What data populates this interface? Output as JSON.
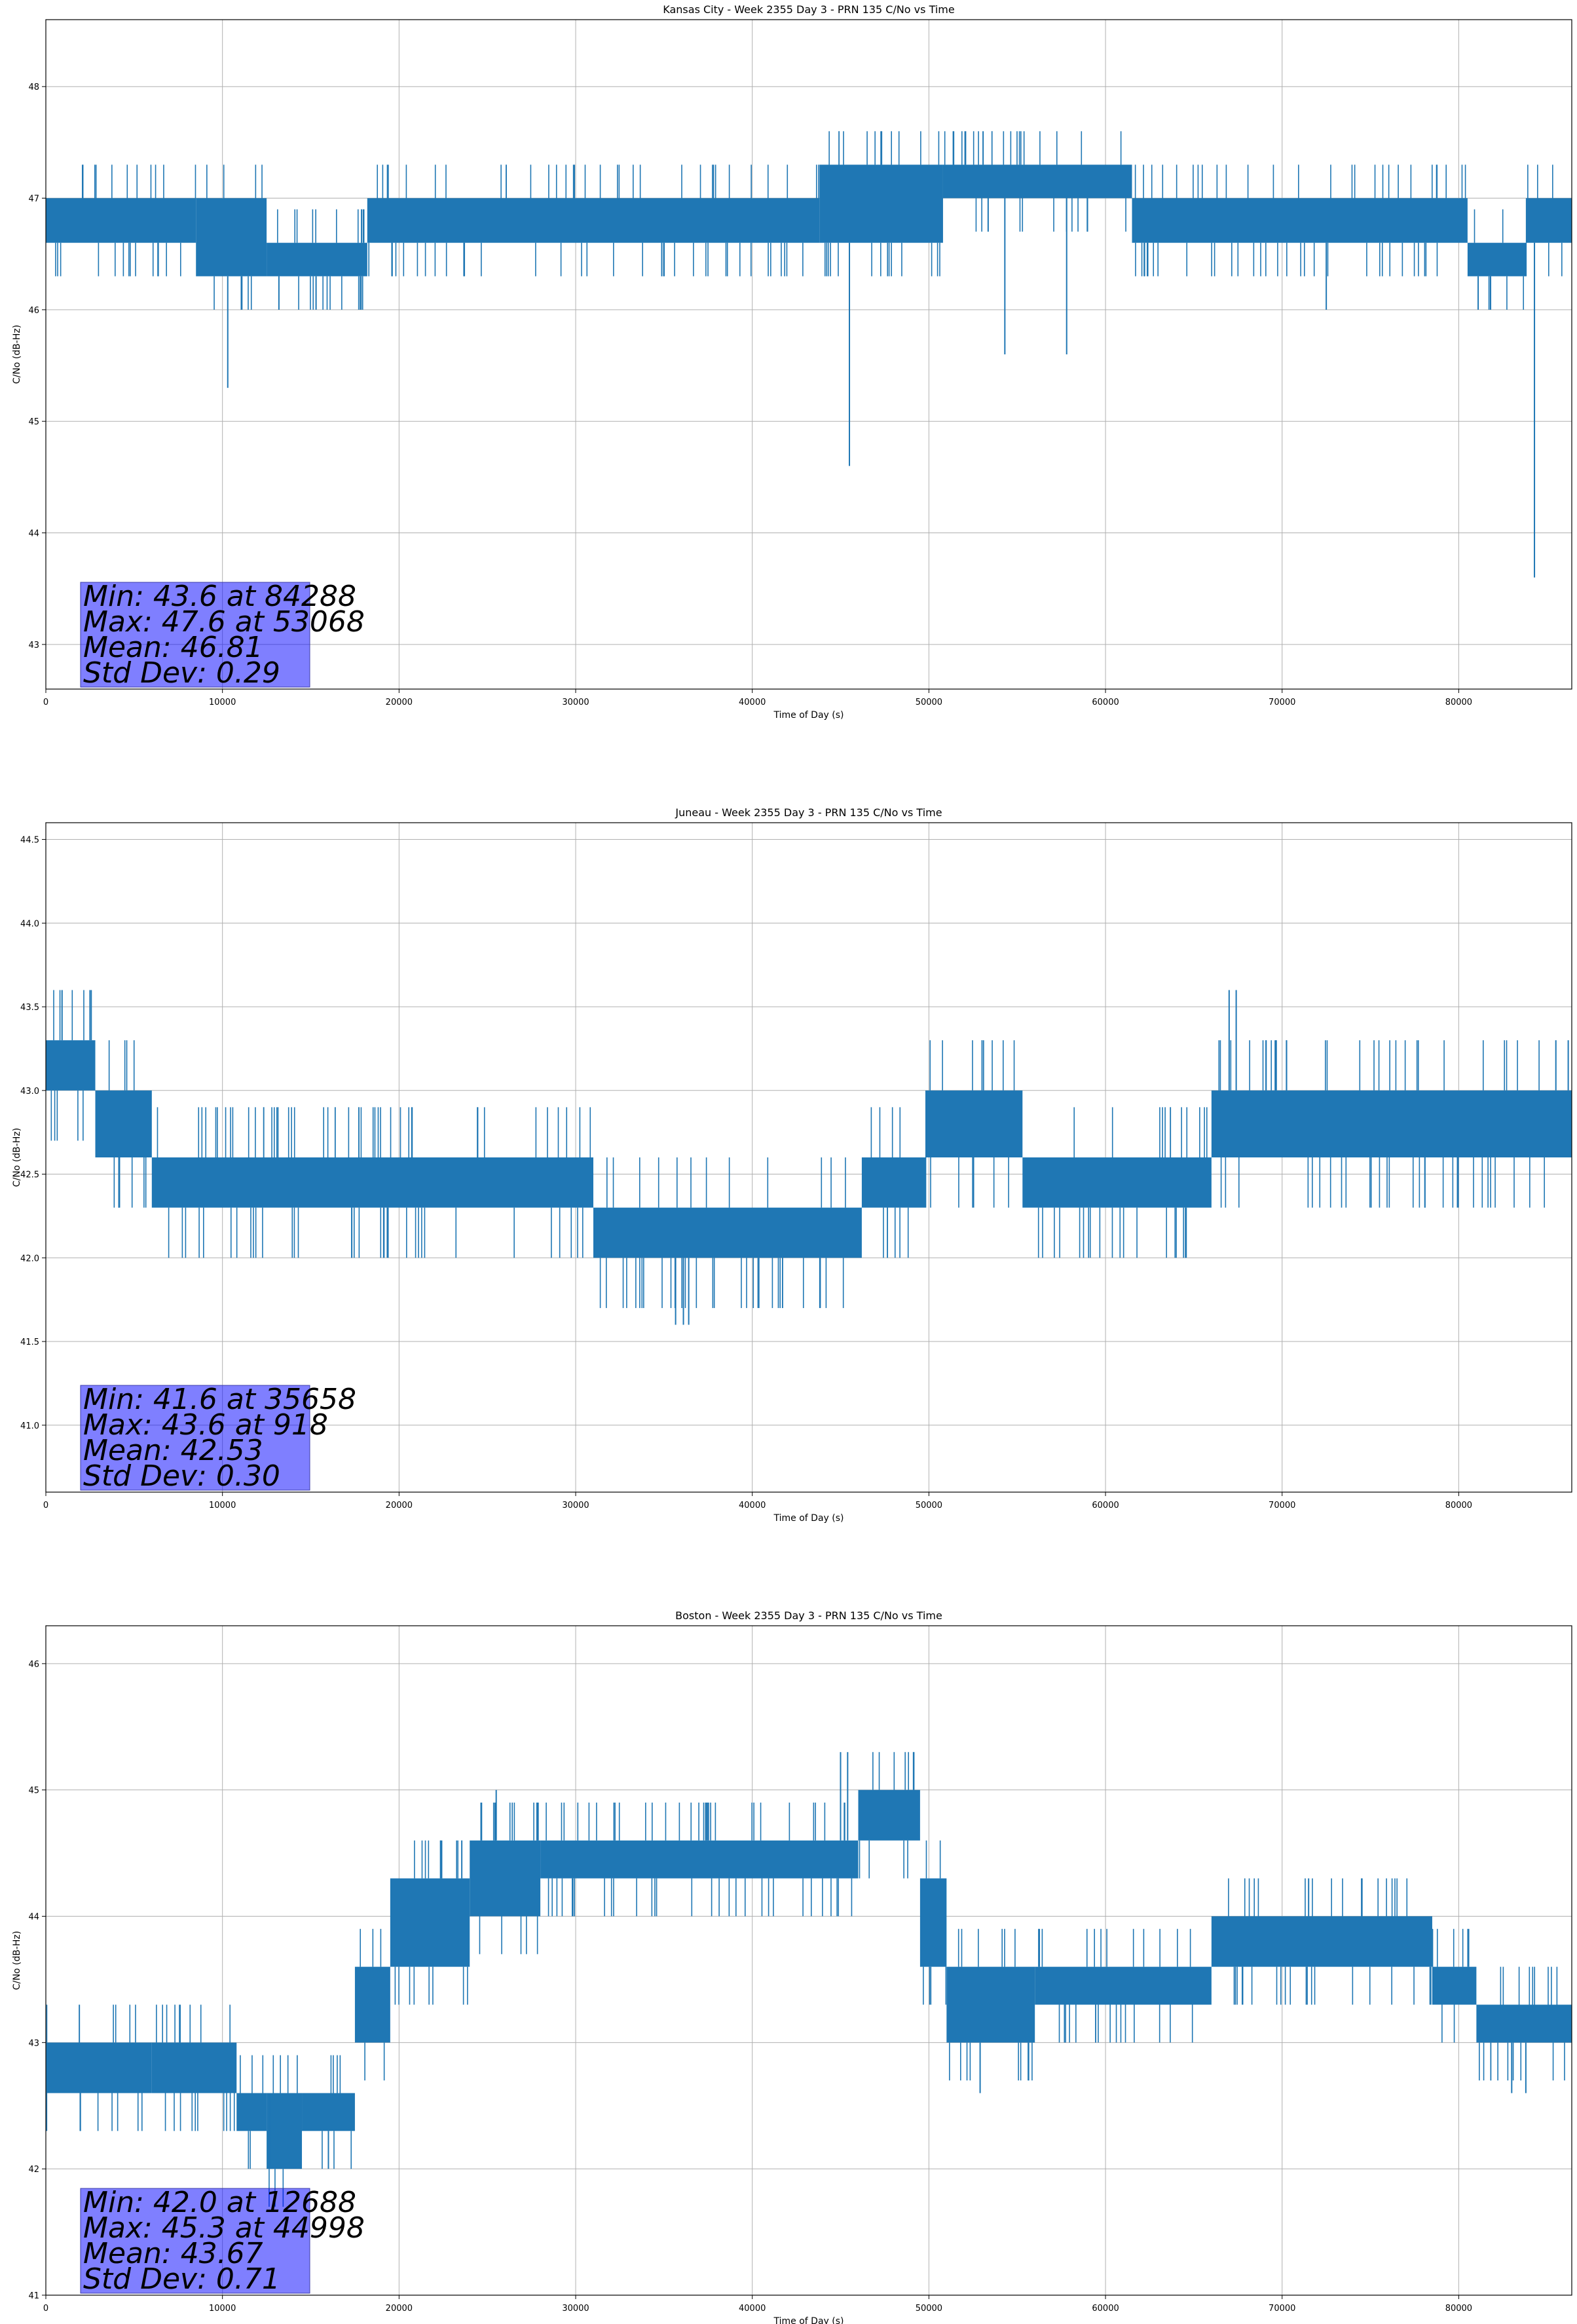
{
  "chart_data": [
    {
      "type": "line",
      "title": "Kansas City - Week 2355 Day 3 - PRN 135 C/No vs Time",
      "xlabel": "Time of Day (s)",
      "ylabel": "C/No (dB-Hz)",
      "xlim": [
        0,
        86400
      ],
      "ylim": [
        42.6,
        48.6
      ],
      "xticks": [
        0,
        10000,
        20000,
        30000,
        40000,
        50000,
        60000,
        70000,
        80000
      ],
      "yticks": [
        43,
        44,
        45,
        46,
        47,
        48
      ],
      "ytick_labels": [
        "43",
        "44",
        "45",
        "46",
        "47",
        "48"
      ],
      "grid": true,
      "line_color": "#1f77b4",
      "band_segments": [
        {
          "x_start": 0,
          "x_end": 8500,
          "low": 46.6,
          "high": 47.0
        },
        {
          "x_start": 8500,
          "x_end": 12500,
          "low": 46.3,
          "high": 47.0
        },
        {
          "x_start": 12500,
          "x_end": 18200,
          "low": 46.3,
          "high": 46.6
        },
        {
          "x_start": 18200,
          "x_end": 43800,
          "low": 46.6,
          "high": 47.0
        },
        {
          "x_start": 43800,
          "x_end": 50800,
          "low": 46.6,
          "high": 47.3
        },
        {
          "x_start": 50800,
          "x_end": 61500,
          "low": 47.0,
          "high": 47.3
        },
        {
          "x_start": 61500,
          "x_end": 80500,
          "low": 46.6,
          "high": 47.0
        },
        {
          "x_start": 80500,
          "x_end": 83800,
          "low": 46.3,
          "high": 46.6
        },
        {
          "x_start": 83800,
          "x_end": 86400,
          "low": 46.6,
          "high": 47.0
        }
      ],
      "noise_step": 0.3,
      "spikes": [
        {
          "x": 10300,
          "y": 45.3
        },
        {
          "x": 15300,
          "y": 46.0
        },
        {
          "x": 45500,
          "y": 44.6
        },
        {
          "x": 54300,
          "y": 45.6
        },
        {
          "x": 57800,
          "y": 45.6
        },
        {
          "x": 72500,
          "y": 46.0
        },
        {
          "x": 81100,
          "y": 46.0
        },
        {
          "x": 84288,
          "y": 43.6
        },
        {
          "x": 53068,
          "y": 47.6
        }
      ],
      "stats": {
        "min_line": "Min: 43.6 at 84288",
        "max_line": "Max: 47.6 at 53068",
        "mean_line": "Mean: 46.81",
        "std_line": "Std Dev: 0.29"
      }
    },
    {
      "type": "line",
      "title": "Juneau - Week 2355 Day 3 - PRN 135 C/No vs Time",
      "xlabel": "Time of Day (s)",
      "ylabel": "C/No (dB-Hz)",
      "xlim": [
        0,
        86400
      ],
      "ylim": [
        40.6,
        44.6
      ],
      "xticks": [
        0,
        10000,
        20000,
        30000,
        40000,
        50000,
        60000,
        70000,
        80000
      ],
      "yticks": [
        41.0,
        41.5,
        42.0,
        42.5,
        43.0,
        43.5,
        44.0,
        44.5
      ],
      "ytick_labels": [
        "41.0",
        "41.5",
        "42.0",
        "42.5",
        "43.0",
        "43.5",
        "44.0",
        "44.5"
      ],
      "grid": true,
      "line_color": "#1f77b4",
      "band_segments": [
        {
          "x_start": 0,
          "x_end": 2800,
          "low": 43.0,
          "high": 43.3
        },
        {
          "x_start": 2800,
          "x_end": 6000,
          "low": 42.6,
          "high": 43.0
        },
        {
          "x_start": 6000,
          "x_end": 31000,
          "low": 42.3,
          "high": 42.6
        },
        {
          "x_start": 31000,
          "x_end": 46200,
          "low": 42.0,
          "high": 42.3
        },
        {
          "x_start": 46200,
          "x_end": 49800,
          "low": 42.3,
          "high": 42.6
        },
        {
          "x_start": 49800,
          "x_end": 55300,
          "low": 42.6,
          "high": 43.0
        },
        {
          "x_start": 55300,
          "x_end": 66000,
          "low": 42.3,
          "high": 42.6
        },
        {
          "x_start": 66000,
          "x_end": 86400,
          "low": 42.6,
          "high": 43.0
        }
      ],
      "noise_step": 0.3,
      "spikes": [
        {
          "x": 918,
          "y": 43.6
        },
        {
          "x": 2500,
          "y": 43.6
        },
        {
          "x": 35658,
          "y": 41.6
        },
        {
          "x": 36100,
          "y": 41.6
        },
        {
          "x": 36400,
          "y": 41.6
        },
        {
          "x": 67000,
          "y": 43.6
        },
        {
          "x": 67400,
          "y": 43.6
        },
        {
          "x": 85500,
          "y": 43.3
        },
        {
          "x": 86200,
          "y": 43.3
        }
      ],
      "stats": {
        "min_line": "Min: 41.6 at 35658",
        "max_line": "Max: 43.6 at 918",
        "mean_line": "Mean: 42.53",
        "std_line": "Std Dev: 0.30"
      }
    },
    {
      "type": "line",
      "title": "Boston - Week 2355 Day 3 - PRN 135 C/No vs Time",
      "xlabel": "Time of Day (s)",
      "ylabel": "C/No (dB-Hz)",
      "xlim": [
        0,
        86400
      ],
      "ylim": [
        41.0,
        46.3
      ],
      "xticks": [
        0,
        10000,
        20000,
        30000,
        40000,
        50000,
        60000,
        70000,
        80000
      ],
      "yticks": [
        41,
        42,
        43,
        44,
        45,
        46
      ],
      "ytick_labels": [
        "41",
        "42",
        "43",
        "44",
        "45",
        "46"
      ],
      "grid": true,
      "line_color": "#1f77b4",
      "band_segments": [
        {
          "x_start": 0,
          "x_end": 6000,
          "low": 42.6,
          "high": 43.0
        },
        {
          "x_start": 6000,
          "x_end": 10800,
          "low": 42.6,
          "high": 43.0
        },
        {
          "x_start": 10800,
          "x_end": 12500,
          "low": 42.3,
          "high": 42.6
        },
        {
          "x_start": 12500,
          "x_end": 14500,
          "low": 42.0,
          "high": 42.6
        },
        {
          "x_start": 14500,
          "x_end": 17500,
          "low": 42.3,
          "high": 42.6
        },
        {
          "x_start": 17500,
          "x_end": 19500,
          "low": 43.0,
          "high": 43.6
        },
        {
          "x_start": 19500,
          "x_end": 24000,
          "low": 43.6,
          "high": 44.3
        },
        {
          "x_start": 24000,
          "x_end": 28000,
          "low": 44.0,
          "high": 44.6
        },
        {
          "x_start": 28000,
          "x_end": 46000,
          "low": 44.3,
          "high": 44.6
        },
        {
          "x_start": 46000,
          "x_end": 49500,
          "low": 44.6,
          "high": 45.0
        },
        {
          "x_start": 49500,
          "x_end": 51000,
          "low": 43.6,
          "high": 44.3
        },
        {
          "x_start": 51000,
          "x_end": 56000,
          "low": 43.0,
          "high": 43.6
        },
        {
          "x_start": 56000,
          "x_end": 66000,
          "low": 43.3,
          "high": 43.6
        },
        {
          "x_start": 66000,
          "x_end": 78500,
          "low": 43.6,
          "high": 44.0
        },
        {
          "x_start": 78500,
          "x_end": 81000,
          "low": 43.3,
          "high": 43.6
        },
        {
          "x_start": 81000,
          "x_end": 86400,
          "low": 43.0,
          "high": 43.3
        }
      ],
      "noise_step": 0.3,
      "spikes": [
        {
          "x": 12688,
          "y": 42.0
        },
        {
          "x": 16000,
          "y": 42.0
        },
        {
          "x": 25500,
          "y": 45.0
        },
        {
          "x": 44998,
          "y": 45.3
        },
        {
          "x": 45400,
          "y": 45.3
        },
        {
          "x": 52900,
          "y": 42.6
        },
        {
          "x": 71500,
          "y": 44.3
        },
        {
          "x": 74500,
          "y": 44.3
        },
        {
          "x": 83000,
          "y": 42.6
        },
        {
          "x": 83800,
          "y": 42.6
        }
      ],
      "stats": {
        "min_line": "Min: 42.0 at 12688",
        "max_line": "Max: 45.3 at 44998",
        "mean_line": "Mean: 43.67",
        "std_line": "Std Dev: 0.71"
      }
    }
  ]
}
